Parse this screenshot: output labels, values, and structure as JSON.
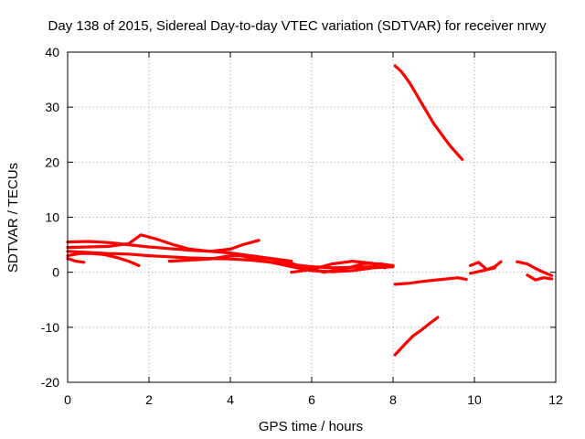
{
  "chart_data": {
    "type": "line",
    "title": "Day 138 of 2015, Sidereal Day-to-day VTEC variation (SDTVAR) for receiver nrwy",
    "xlabel": "GPS time / hours",
    "ylabel": "SDTVAR / TECUs",
    "xlim": [
      0,
      12
    ],
    "ylim": [
      -20,
      40
    ],
    "xticks": [
      0,
      2,
      4,
      6,
      8,
      10,
      12
    ],
    "yticks": [
      -20,
      -10,
      0,
      10,
      20,
      30,
      40
    ],
    "grid": true,
    "legend": "none",
    "series_color": "#ff0000",
    "series": [
      {
        "name": "trace-1",
        "x": [
          0.0,
          0.5,
          1.0,
          1.5,
          2.0,
          2.5,
          3.0,
          3.5,
          4.0,
          4.3,
          4.7
        ],
        "y": [
          5.5,
          5.6,
          5.4,
          5.0,
          4.6,
          4.3,
          4.0,
          3.8,
          4.2,
          5.0,
          5.8
        ]
      },
      {
        "name": "trace-2",
        "x": [
          0.0,
          0.5,
          1.0,
          1.5,
          1.8,
          2.2,
          2.6,
          3.0,
          3.5,
          4.0,
          4.5,
          5.0,
          5.5
        ],
        "y": [
          4.5,
          4.6,
          4.7,
          5.2,
          6.8,
          6.0,
          5.0,
          4.2,
          3.8,
          3.5,
          3.0,
          2.5,
          2.0
        ]
      },
      {
        "name": "trace-3",
        "x": [
          0.0,
          0.3,
          0.6,
          0.9,
          1.2,
          1.5,
          1.75
        ],
        "y": [
          3.0,
          3.4,
          3.4,
          3.2,
          2.7,
          2.0,
          1.2
        ]
      },
      {
        "name": "trace-4",
        "x": [
          0.0,
          0.2,
          0.4
        ],
        "y": [
          2.5,
          2.0,
          1.8
        ]
      },
      {
        "name": "trace-5",
        "x": [
          0.0,
          0.5,
          1.0,
          1.5,
          2.0,
          2.5,
          3.0,
          3.5,
          4.0,
          4.5,
          5.0,
          5.5,
          6.0,
          6.5,
          7.0,
          7.5,
          8.0
        ],
        "y": [
          3.8,
          3.6,
          3.4,
          3.3,
          3.0,
          2.8,
          2.6,
          2.5,
          2.4,
          2.2,
          1.8,
          1.4,
          1.0,
          0.8,
          0.9,
          1.0,
          1.2
        ]
      },
      {
        "name": "trace-6",
        "x": [
          2.5,
          3.0,
          3.5,
          4.0,
          4.5,
          5.0,
          5.5,
          6.0,
          6.3,
          6.8,
          7.3,
          7.7,
          8.0
        ],
        "y": [
          2.0,
          2.2,
          2.4,
          3.0,
          3.0,
          2.4,
          1.6,
          0.5,
          0.0,
          0.6,
          1.6,
          1.5,
          1.2
        ]
      },
      {
        "name": "trace-7",
        "x": [
          4.0,
          4.5,
          5.0,
          5.5,
          6.0,
          6.5,
          7.0,
          7.5,
          8.0
        ],
        "y": [
          3.5,
          2.6,
          1.8,
          1.0,
          0.3,
          0.1,
          0.3,
          0.8,
          1.0
        ]
      },
      {
        "name": "trace-8",
        "x": [
          5.5,
          6.0,
          6.5,
          7.0,
          7.5,
          7.8
        ],
        "y": [
          0.0,
          0.5,
          1.5,
          2.0,
          1.6,
          0.8
        ]
      },
      {
        "name": "trace-9",
        "x": [
          8.05,
          8.2,
          8.4,
          8.6,
          8.8,
          9.0,
          9.2,
          9.4,
          9.7
        ],
        "y": [
          37.5,
          36.5,
          34.5,
          32.0,
          29.5,
          27.0,
          25.0,
          23.0,
          20.5
        ]
      },
      {
        "name": "trace-10",
        "x": [
          8.05,
          8.4,
          8.8,
          9.2,
          9.6,
          9.8
        ],
        "y": [
          -2.2,
          -2.0,
          -1.6,
          -1.3,
          -1.0,
          -1.3
        ]
      },
      {
        "name": "trace-11",
        "x": [
          8.05,
          8.3,
          8.5,
          8.7,
          8.9,
          9.1
        ],
        "y": [
          -15.0,
          -13.0,
          -11.5,
          -10.5,
          -9.3,
          -8.2
        ]
      },
      {
        "name": "trace-12",
        "x": [
          9.9,
          10.1,
          10.3,
          10.5,
          10.65
        ],
        "y": [
          1.2,
          1.8,
          0.5,
          1.0,
          1.9
        ]
      },
      {
        "name": "trace-13",
        "x": [
          9.9,
          10.2,
          10.5
        ],
        "y": [
          -0.2,
          0.3,
          0.8
        ]
      },
      {
        "name": "trace-14",
        "x": [
          11.05,
          11.3,
          11.5,
          11.7,
          11.9
        ],
        "y": [
          1.9,
          1.5,
          0.7,
          0.0,
          -0.6
        ]
      },
      {
        "name": "trace-15",
        "x": [
          11.3,
          11.5,
          11.7,
          11.9
        ],
        "y": [
          -0.5,
          -1.4,
          -1.0,
          -1.2
        ]
      }
    ]
  }
}
